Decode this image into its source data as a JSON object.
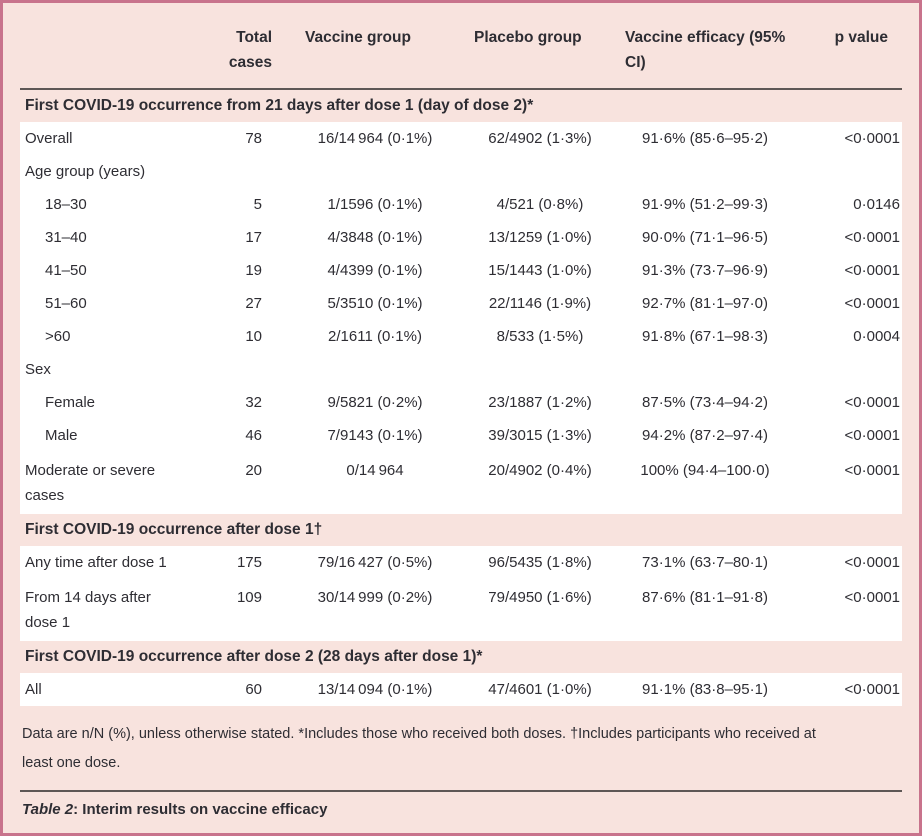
{
  "colors": {
    "background_pink": "#f8e3de",
    "border_rose": "#c8738c",
    "rule_dark": "#5e5755",
    "text": "#2e2d33",
    "row_white": "#ffffff"
  },
  "table": {
    "col_headers": [
      "",
      "Total cases",
      "Vaccine group",
      "Placebo group",
      "Vaccine efficacy (95% CI)",
      "p value"
    ],
    "sections": [
      {
        "header": "First COVID-19 occurrence from 21 days after dose 1 (day of dose 2)*",
        "rows": [
          {
            "label": "Overall",
            "indent": false,
            "tall": false,
            "cells": [
              "78",
              "16/14 964 (0·1%)",
              "62/4902 (1·3%)",
              "91·6% (85·6–95·2)",
              "<0·0001"
            ]
          },
          {
            "label": "Age group (years)",
            "indent": false,
            "tall": false,
            "cells": [
              "",
              "",
              "",
              "",
              ""
            ]
          },
          {
            "label": "18–30",
            "indent": true,
            "tall": false,
            "cells": [
              "5",
              "1/1596 (0·1%)",
              "4/521 (0·8%)",
              "91·9% (51·2–99·3)",
              "0·0146"
            ]
          },
          {
            "label": "31–40",
            "indent": true,
            "tall": false,
            "cells": [
              "17",
              "4/3848 (0·1%)",
              "13/1259 (1·0%)",
              "90·0% (71·1–96·5)",
              "<0·0001"
            ]
          },
          {
            "label": "41–50",
            "indent": true,
            "tall": false,
            "cells": [
              "19",
              "4/4399 (0·1%)",
              "15/1443 (1·0%)",
              "91·3% (73·7–96·9)",
              "<0·0001"
            ]
          },
          {
            "label": "51–60",
            "indent": true,
            "tall": false,
            "cells": [
              "27",
              "5/3510 (0·1%)",
              "22/1146 (1·9%)",
              "92·7% (81·1–97·0)",
              "<0·0001"
            ]
          },
          {
            "label": ">60",
            "indent": true,
            "tall": false,
            "cells": [
              "10",
              "2/1611 (0·1%)",
              "8/533 (1·5%)",
              "91·8% (67·1–98·3)",
              "0·0004"
            ]
          },
          {
            "label": "Sex",
            "indent": false,
            "tall": false,
            "cells": [
              "",
              "",
              "",
              "",
              ""
            ]
          },
          {
            "label": "Female",
            "indent": true,
            "tall": false,
            "cells": [
              "32",
              "9/5821 (0·2%)",
              "23/1887 (1·2%)",
              "87·5% (73·4–94·2)",
              "<0·0001"
            ]
          },
          {
            "label": "Male",
            "indent": true,
            "tall": false,
            "cells": [
              "46",
              "7/9143 (0·1%)",
              "39/3015 (1·3%)",
              "94·2% (87·2–97·4)",
              "<0·0001"
            ]
          },
          {
            "label": "Moderate or severe cases",
            "indent": false,
            "tall": true,
            "cells": [
              "20",
              "0/14 964",
              "20/4902 (0·4%)",
              "100% (94·4–100·0)",
              "<0·0001"
            ]
          }
        ]
      },
      {
        "header": "First COVID-19 occurrence after dose 1†",
        "rows": [
          {
            "label": "Any time after dose 1",
            "indent": false,
            "tall": false,
            "cells": [
              "175",
              "79/16 427 (0·5%)",
              "96/5435 (1·8%)",
              "73·1% (63·7–80·1)",
              "<0·0001"
            ]
          },
          {
            "label": "From 14 days after dose 1",
            "indent": false,
            "tall": true,
            "cells": [
              "109",
              "30/14 999 (0·2%)",
              "79/4950 (1·6%)",
              "87·6% (81·1–91·8)",
              "<0·0001"
            ]
          }
        ]
      },
      {
        "header": "First COVID-19 occurrence after dose 2 (28 days after dose 1)*",
        "rows": [
          {
            "label": "All",
            "indent": false,
            "tall": false,
            "cells": [
              "60",
              "13/14 094 (0·1%)",
              "47/4601 (1·0%)",
              "91·1% (83·8–95·1)",
              "<0·0001"
            ]
          }
        ]
      }
    ],
    "footnote": "Data are n/N (%), unless otherwise stated. *Includes those who received both doses. †Includes participants who received at least one dose.",
    "caption": {
      "prefix": "Table 2",
      "rest": ": Interim results on vaccine efficacy"
    }
  }
}
